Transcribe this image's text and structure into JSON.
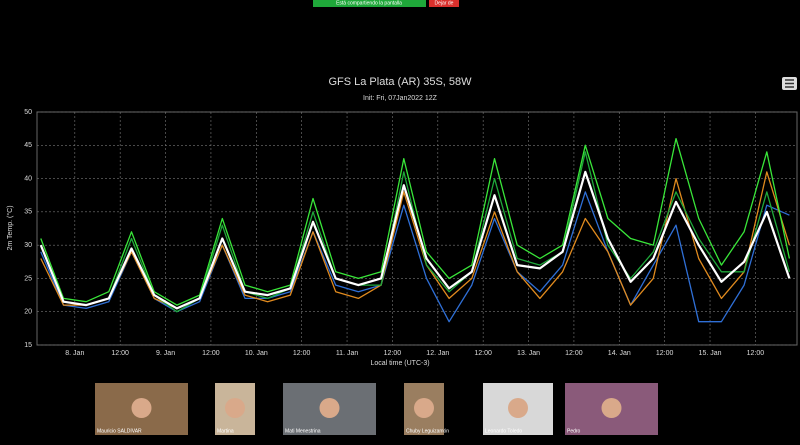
{
  "banner": {
    "message": "Está compartiendo la pantalla",
    "button": "Dejar de"
  },
  "chart_data": {
    "type": "line",
    "title": "GFS La Plata (AR) 35S, 58W",
    "subtitle": "Init: Fri, 07Jan2022 12Z",
    "y_label": "2m Temp. (°C)",
    "x_label": "Local time (UTC-3)",
    "x": [
      -9,
      -3,
      3,
      9,
      15,
      21,
      27,
      33,
      39,
      45,
      51,
      57,
      63,
      69,
      75,
      81,
      87,
      93,
      99,
      105,
      111,
      117,
      123,
      129,
      135,
      141,
      147,
      153,
      159,
      165,
      171,
      177,
      183,
      189
    ],
    "xlim": [
      -10,
      191
    ],
    "xticks": [
      {
        "value": 0,
        "label": "8. Jan"
      },
      {
        "value": 12,
        "label": "12:00"
      },
      {
        "value": 24,
        "label": "9. Jan"
      },
      {
        "value": 36,
        "label": "12:00"
      },
      {
        "value": 48,
        "label": "10. Jan"
      },
      {
        "value": 60,
        "label": "12:00"
      },
      {
        "value": 72,
        "label": "11. Jan"
      },
      {
        "value": 84,
        "label": "12:00"
      },
      {
        "value": 96,
        "label": "12. Jan"
      },
      {
        "value": 108,
        "label": "12:00"
      },
      {
        "value": 120,
        "label": "13. Jan"
      },
      {
        "value": 132,
        "label": "12:00"
      },
      {
        "value": 144,
        "label": "14. Jan"
      },
      {
        "value": 156,
        "label": "12:00"
      },
      {
        "value": 168,
        "label": "15. Jan"
      },
      {
        "value": 180,
        "label": "12:00"
      }
    ],
    "ylim": [
      15,
      50
    ],
    "yticks": [
      15,
      20,
      25,
      30,
      35,
      40,
      45,
      50
    ],
    "grid": true,
    "series": [
      {
        "color": "#2f6fd6",
        "values": [
          29,
          21,
          20.5,
          21.5,
          29,
          22,
          20,
          21.5,
          30,
          22,
          22,
          23,
          32,
          24,
          23,
          24,
          36,
          25,
          18.5,
          24,
          34,
          26,
          23,
          27,
          38,
          29,
          21,
          27,
          33,
          18.5,
          18.5,
          24,
          36,
          34.5
        ]
      },
      {
        "color": "#e08a1e",
        "values": [
          28,
          21,
          21,
          22,
          29,
          22,
          20.5,
          22,
          30,
          22.5,
          21.5,
          22.5,
          32,
          23,
          22,
          24,
          38,
          27,
          22,
          25,
          35,
          26,
          22,
          26,
          34,
          29,
          21,
          25,
          40,
          28,
          22,
          26,
          41,
          30
        ]
      },
      {
        "color": "#1fa83a",
        "values": [
          30,
          21.5,
          21,
          22,
          31,
          22.5,
          20,
          22,
          33,
          23,
          22,
          23.5,
          35,
          25,
          24,
          24,
          41,
          27,
          23,
          26,
          40,
          28,
          27,
          29,
          44,
          30,
          25,
          29,
          38,
          31,
          26,
          26,
          38,
          26
        ]
      },
      {
        "color": "#39e639",
        "values": [
          31,
          22,
          21.5,
          23,
          32,
          23,
          21,
          22.5,
          34,
          24,
          23,
          24,
          37,
          26,
          25,
          26,
          43,
          29,
          25,
          27,
          43,
          30,
          28,
          30,
          45,
          34,
          31,
          30,
          46,
          34,
          27,
          32,
          44,
          28
        ]
      },
      {
        "color": "#ffffff",
        "values": [
          30,
          21.5,
          21,
          22,
          29.5,
          22.5,
          20.5,
          22,
          31,
          23,
          22.5,
          23.5,
          33.5,
          25,
          24,
          25,
          39,
          28,
          23.5,
          26,
          37.5,
          27,
          26.5,
          29,
          41,
          31,
          24.5,
          28,
          36.5,
          30,
          24.5,
          27.5,
          35,
          25
        ]
      }
    ]
  },
  "participants": [
    "Mauricio SALDIVAR",
    "Martina",
    "Mati Menestrina",
    "Chuby Leguizamón",
    "Leonardo Toledo",
    "Pedro"
  ]
}
